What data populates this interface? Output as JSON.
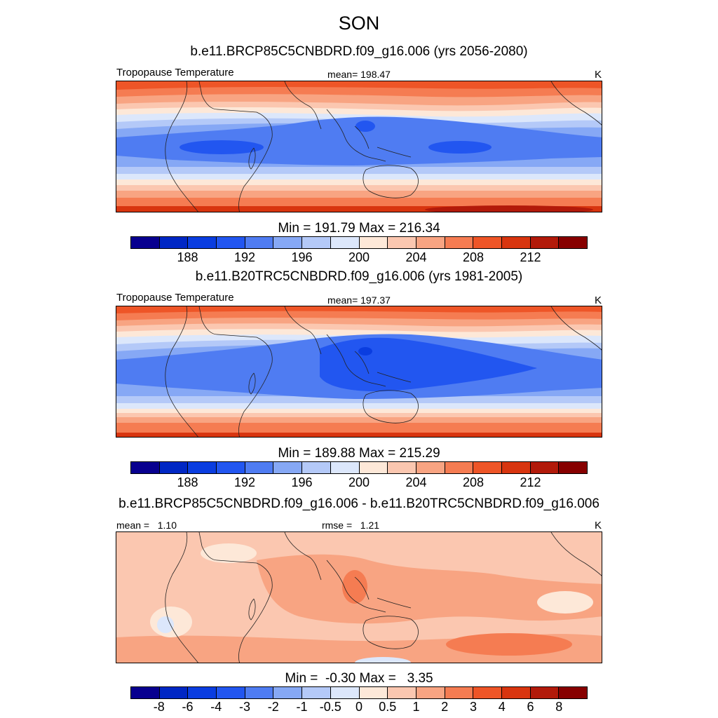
{
  "figure": {
    "season_title": "SON"
  },
  "panels": [
    {
      "id": "future",
      "title": "b.e11.BRCP85C5CNBDRD.f09_g16.006 (yrs 2056-2080)",
      "left_label": "Tropopause Temperature",
      "center_label": "mean= 198.47",
      "units": "K",
      "minmax": "Min = 191.79 Max = 216.34",
      "colorbar": {
        "colors": [
          "#08008f",
          "#0027c4",
          "#0a3de0",
          "#2256f0",
          "#4f7cf2",
          "#86a8f5",
          "#b4c9f8",
          "#dce7fb",
          "#fde8d8",
          "#fbc7b0",
          "#f8a482",
          "#f57c52",
          "#ee5527",
          "#d8350f",
          "#b21a0a",
          "#870000"
        ],
        "labels": [
          "188",
          "192",
          "196",
          "200",
          "204",
          "208",
          "212"
        ]
      }
    },
    {
      "id": "historical",
      "title": "b.e11.B20TRC5CNBDRD.f09_g16.006 (yrs 1981-2005)",
      "left_label": "Tropopause Temperature",
      "center_label": "mean= 197.37",
      "units": "K",
      "minmax": "Min = 189.88 Max = 215.29",
      "colorbar": {
        "colors": [
          "#08008f",
          "#0027c4",
          "#0a3de0",
          "#2256f0",
          "#4f7cf2",
          "#86a8f5",
          "#b4c9f8",
          "#dce7fb",
          "#fde8d8",
          "#fbc7b0",
          "#f8a482",
          "#f57c52",
          "#ee5527",
          "#d8350f",
          "#b21a0a",
          "#870000"
        ],
        "labels": [
          "188",
          "192",
          "196",
          "200",
          "204",
          "208",
          "212"
        ]
      }
    },
    {
      "id": "difference",
      "title": "b.e11.BRCP85C5CNBDRD.f09_g16.006 - b.e11.B20TRC5CNBDRD.f09_g16.006",
      "left_label": "mean =   1.10",
      "center_label": "rmse =   1.21",
      "units": "K",
      "minmax": "Min =  -0.30 Max =   3.35",
      "colorbar": {
        "colors": [
          "#08008f",
          "#0027c4",
          "#0a3de0",
          "#2256f0",
          "#4f7cf2",
          "#86a8f5",
          "#b4c9f8",
          "#dce7fb",
          "#fde8d8",
          "#fbc7b0",
          "#f8a482",
          "#f57c52",
          "#ee5527",
          "#d8350f",
          "#b21a0a",
          "#870000"
        ],
        "labels": [
          "-8",
          "-6",
          "-4",
          "-3",
          "-2",
          "-1",
          "-0.5",
          "0",
          "0.5",
          "1",
          "2",
          "3",
          "4",
          "6",
          "8"
        ]
      }
    }
  ]
}
